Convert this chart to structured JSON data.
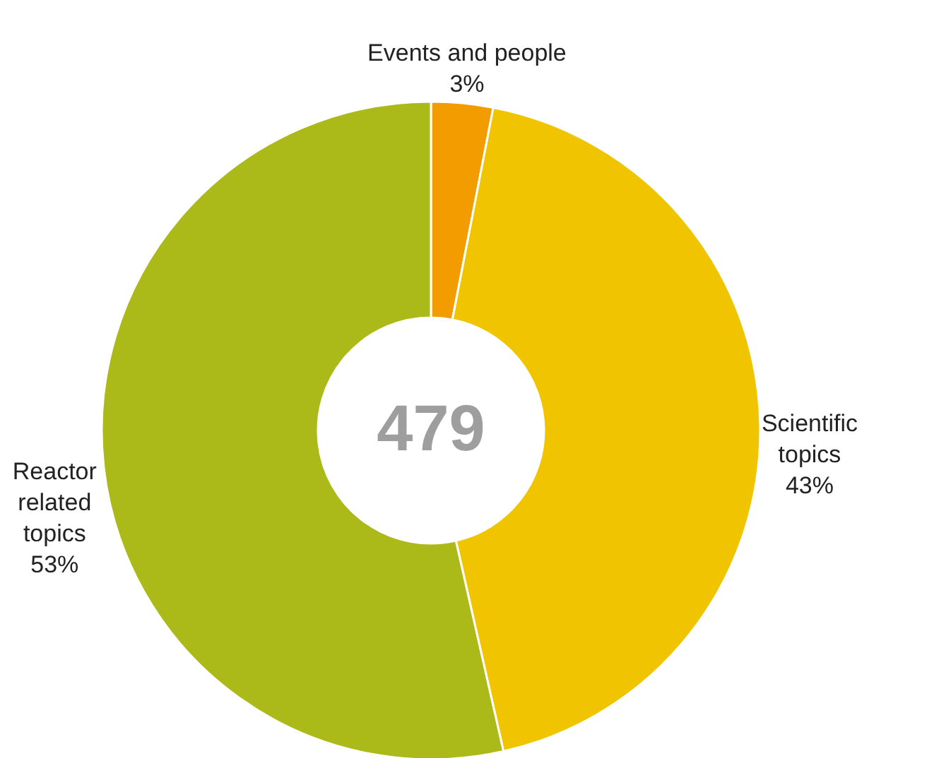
{
  "chart_data": {
    "type": "donut",
    "categories": [
      "Events and people",
      "Scientific topics",
      "Reactor related topics"
    ],
    "values": [
      3,
      43,
      53
    ],
    "colors": [
      "#f39c00",
      "#f1c400",
      "#abba18"
    ],
    "annotations": [
      "479"
    ],
    "value_labels": [
      "3%",
      "43%",
      "53%"
    ]
  }
}
